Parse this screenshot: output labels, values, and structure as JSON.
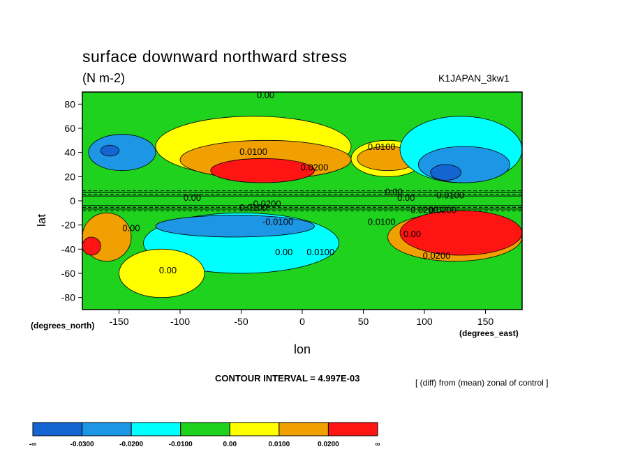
{
  "title": "surface downward northward stress",
  "units": "(N m-2)",
  "run_id": "K1JAPAN_3kw1",
  "contour_interval": "CONTOUR INTERVAL = 4.997E-03",
  "note": "[ (diff) from (mean) zonal of control ]",
  "chart_data": {
    "type": "heatmap",
    "xlabel": "lon",
    "ylabel": "lat",
    "x_units": "(degrees_east)",
    "y_units": "(degrees_north)",
    "xlim": [
      -180,
      180
    ],
    "ylim": [
      -90,
      90
    ],
    "x_ticks": [
      "-150",
      "-100",
      "-50",
      "0",
      "50",
      "100",
      "150"
    ],
    "x_tick_values": [
      -150,
      -100,
      -50,
      0,
      50,
      100,
      150
    ],
    "y_ticks": [
      "80",
      "60",
      "40",
      "20",
      "0",
      "-20",
      "-40",
      "-60",
      "-80"
    ],
    "y_tick_values": [
      80,
      60,
      40,
      20,
      0,
      -20,
      -40,
      -60,
      -80
    ],
    "colorbar": {
      "labels": [
        "-∞",
        "-0.0300",
        "-0.0200",
        "-0.0100",
        "0.00",
        "0.0100",
        "0.0200",
        "∞"
      ],
      "colors": [
        "#1464d2",
        "#1e96e6",
        "#00ffff",
        "#1ed21e",
        "#ffff00",
        "#f0a000",
        "#ff1414"
      ]
    },
    "contour_labels": [
      "0.00",
      "0.0100",
      "0.0200",
      "0.0100",
      "0.00",
      "0.0100",
      "0.0200",
      "0.00",
      "-0.0100",
      "-0.0200",
      "0.00",
      "0.0100",
      "0.0200",
      "-0.0100",
      "0.00",
      "0.00",
      "0.0100",
      "0.00",
      "0.0200",
      "0.00"
    ],
    "regions": [
      {
        "value_class": 3,
        "lon": [
          -180,
          180
        ],
        "lat": [
          -90,
          90
        ]
      },
      {
        "value_class": 4,
        "lon": [
          -120,
          40
        ],
        "lat": [
          20,
          70
        ]
      },
      {
        "value_class": 5,
        "lon": [
          -100,
          40
        ],
        "lat": [
          18,
          50
        ]
      },
      {
        "value_class": 6,
        "lon": [
          -75,
          10
        ],
        "lat": [
          15,
          35
        ]
      },
      {
        "value_class": 4,
        "lon": [
          40,
          100
        ],
        "lat": [
          20,
          50
        ]
      },
      {
        "value_class": 5,
        "lon": [
          45,
          95
        ],
        "lat": [
          25,
          45
        ]
      },
      {
        "value_class": 1,
        "lon": [
          -175,
          -120
        ],
        "lat": [
          25,
          55
        ]
      },
      {
        "value_class": 0,
        "lon": [
          -165,
          -150
        ],
        "lat": [
          37,
          46
        ]
      },
      {
        "value_class": 2,
        "lon": [
          80,
          180
        ],
        "lat": [
          15,
          70
        ]
      },
      {
        "value_class": 1,
        "lon": [
          95,
          170
        ],
        "lat": [
          15,
          45
        ]
      },
      {
        "value_class": 0,
        "lon": [
          105,
          130
        ],
        "lat": [
          17,
          30
        ]
      },
      {
        "value_class": 2,
        "lon": [
          -130,
          30
        ],
        "lat": [
          -60,
          -10
        ]
      },
      {
        "value_class": 1,
        "lon": [
          -120,
          10
        ],
        "lat": [
          -30,
          -12
        ]
      },
      {
        "value_class": 5,
        "lon": [
          70,
          180
        ],
        "lat": [
          -50,
          -10
        ]
      },
      {
        "value_class": 6,
        "lon": [
          80,
          180
        ],
        "lat": [
          -45,
          -8
        ]
      },
      {
        "value_class": 5,
        "lon": [
          -180,
          -140
        ],
        "lat": [
          -50,
          -10
        ]
      },
      {
        "value_class": 6,
        "lon": [
          -180,
          -165
        ],
        "lat": [
          -45,
          -30
        ]
      },
      {
        "value_class": 4,
        "lon": [
          -150,
          -80
        ],
        "lat": [
          -80,
          -40
        ]
      }
    ]
  }
}
